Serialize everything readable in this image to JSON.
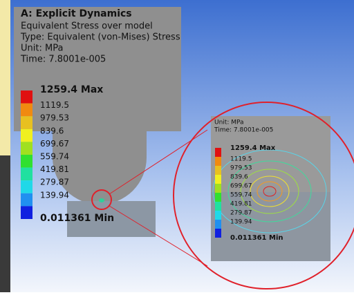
{
  "header": {
    "title": "A: Explicit Dynamics",
    "lines": [
      "Equivalent Stress over model",
      "Type: Equivalent (von-Mises) Stress",
      "Unit: MPa",
      "Time: 7.8001e-005"
    ]
  },
  "legend": {
    "labels": [
      "1259.4 Max",
      "1119.5",
      "979.53",
      "839.6",
      "699.67",
      "559.74",
      "419.81",
      "279.87",
      "139.94",
      "0.011361 Min"
    ]
  },
  "inset": {
    "unit": "Unit: MPa",
    "time": "Time: 7.8001e-005",
    "labels": [
      "1259.4 Max",
      "1119.5",
      "979.53",
      "839.6",
      "699.67",
      "559.74",
      "419.81",
      "279.87",
      "139.94",
      "0.011361 Min"
    ]
  }
}
